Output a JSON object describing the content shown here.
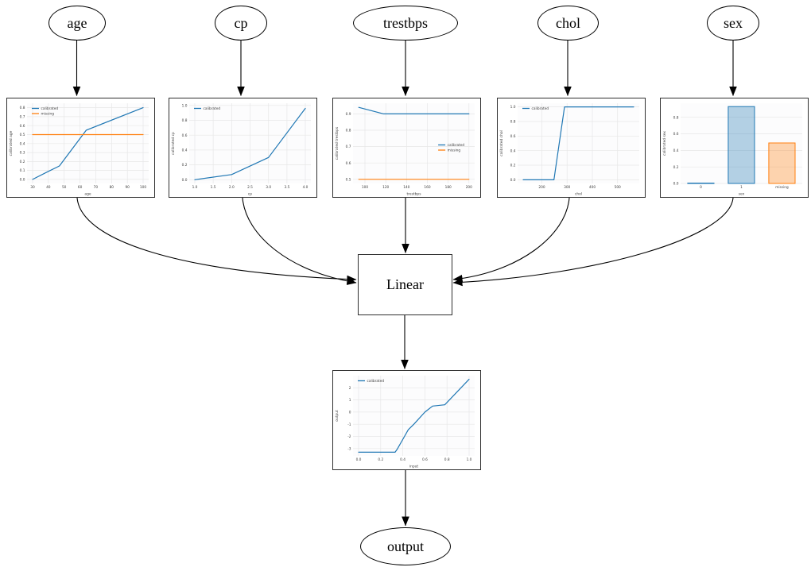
{
  "nodes": {
    "inputs": [
      "age",
      "cp",
      "trestbps",
      "chol",
      "sex"
    ],
    "linear_label": "Linear",
    "output_label": "output"
  },
  "colors": {
    "calibrated": "#1f77b4",
    "missing": "#ff7f0e",
    "edge": "#000000",
    "plot_border": "#333333",
    "grid": "#e7e7e7",
    "tick_text": "#3d3d3d"
  },
  "chart_data": [
    {
      "name": "age-calibrator",
      "type": "line",
      "title": "",
      "xlabel": "age",
      "ylabel": "calibrated age",
      "xlim": [
        26.5,
        103.5
      ],
      "ylim": [
        -0.045,
        0.85
      ],
      "xticks": {
        "values": [
          30,
          40,
          50,
          60,
          70,
          80,
          90,
          100
        ],
        "labels": [
          "30",
          "40",
          "50",
          "60",
          "70",
          "80",
          "90",
          "100"
        ]
      },
      "yticks": {
        "values": [
          0.0,
          0.1,
          0.2,
          0.3,
          0.4,
          0.5,
          0.6,
          0.7,
          0.8
        ],
        "labels": [
          "0.0",
          "0.1",
          "0.2",
          "0.3",
          "0.4",
          "0.5",
          "0.6",
          "0.7",
          "0.8"
        ]
      },
      "grid": true,
      "legend": {
        "position": "upper-left",
        "entries": [
          "calibrated",
          "missing"
        ]
      },
      "series": [
        {
          "name": "calibrated",
          "color": "#1f77b4",
          "points": [
            [
              30,
              0.0
            ],
            [
              40,
              0.09
            ],
            [
              47,
              0.15
            ],
            [
              64,
              0.55
            ],
            [
              100,
              0.8
            ]
          ]
        },
        {
          "name": "missing",
          "color": "#ff7f0e",
          "points": [
            [
              30,
              0.5
            ],
            [
              100,
              0.5
            ]
          ]
        }
      ]
    },
    {
      "name": "cp-calibrator",
      "type": "line",
      "title": "",
      "xlabel": "cp",
      "ylabel": "calibrated cp",
      "xlim": [
        0.85,
        4.15
      ],
      "ylim": [
        -0.05,
        1.03
      ],
      "xticks": {
        "values": [
          1.0,
          1.5,
          2.0,
          2.5,
          3.0,
          3.5,
          4.0
        ],
        "labels": [
          "1.0",
          "1.5",
          "2.0",
          "2.5",
          "3.0",
          "3.5",
          "4.0"
        ]
      },
      "yticks": {
        "values": [
          0.0,
          0.2,
          0.4,
          0.6,
          0.8,
          1.0
        ],
        "labels": [
          "0.0",
          "0.2",
          "0.4",
          "0.6",
          "0.8",
          "1.0"
        ]
      },
      "grid": true,
      "legend": {
        "position": "upper-left",
        "entries": [
          "calibrated"
        ]
      },
      "series": [
        {
          "name": "calibrated",
          "color": "#1f77b4",
          "points": [
            [
              1.0,
              0.0
            ],
            [
              2.0,
              0.07
            ],
            [
              3.0,
              0.3
            ],
            [
              4.0,
              0.96
            ]
          ]
        }
      ]
    },
    {
      "name": "trestbps-calibrator",
      "type": "line",
      "title": "",
      "xlabel": "trestbps",
      "ylabel": "calibrated trestbps",
      "xlim": [
        88.5,
        205.5
      ],
      "ylim": [
        0.475,
        0.965
      ],
      "xticks": {
        "values": [
          100,
          120,
          140,
          160,
          180,
          200
        ],
        "labels": [
          "100",
          "120",
          "140",
          "160",
          "180",
          "200"
        ]
      },
      "yticks": {
        "values": [
          0.5,
          0.6,
          0.7,
          0.8,
          0.9
        ],
        "labels": [
          "0.5",
          "0.6",
          "0.7",
          "0.8",
          "0.9"
        ]
      },
      "grid": true,
      "legend": {
        "position": "center-right",
        "entries": [
          "calibrated",
          "missing"
        ]
      },
      "series": [
        {
          "name": "calibrated",
          "color": "#1f77b4",
          "points": [
            [
              94,
              0.94
            ],
            [
              118,
              0.9
            ],
            [
              200,
              0.9
            ]
          ]
        },
        {
          "name": "missing",
          "color": "#ff7f0e",
          "points": [
            [
              94,
              0.5
            ],
            [
              200,
              0.5
            ]
          ]
        }
      ]
    },
    {
      "name": "chol-calibrator",
      "type": "line",
      "title": "",
      "xlabel": "chol",
      "ylabel": "calibrated chol",
      "xlim": [
        104,
        586
      ],
      "ylim": [
        -0.05,
        1.05
      ],
      "xticks": {
        "values": [
          200,
          300,
          400,
          500
        ],
        "labels": [
          "200",
          "300",
          "400",
          "500"
        ]
      },
      "yticks": {
        "values": [
          0.0,
          0.2,
          0.4,
          0.6,
          0.8,
          1.0
        ],
        "labels": [
          "0.0",
          "0.2",
          "0.4",
          "0.6",
          "0.8",
          "1.0"
        ]
      },
      "grid": true,
      "legend": {
        "position": "upper-left",
        "entries": [
          "calibrated"
        ]
      },
      "series": [
        {
          "name": "calibrated",
          "color": "#1f77b4",
          "points": [
            [
              126,
              0.0
            ],
            [
              248,
              0.0
            ],
            [
              290,
              1.0
            ],
            [
              564,
              1.0
            ]
          ]
        }
      ]
    },
    {
      "name": "sex-calibrator",
      "type": "bar",
      "title": "",
      "xlabel": "sex",
      "ylabel": "calibrated sex",
      "ylim": [
        0,
        0.97
      ],
      "yticks": {
        "values": [
          0.0,
          0.2,
          0.4,
          0.6,
          0.8
        ],
        "labels": [
          "0.0",
          "0.2",
          "0.4",
          "0.6",
          "0.8"
        ]
      },
      "grid": true,
      "legend": null,
      "categories": [
        "0",
        "1",
        "missing"
      ],
      "values": [
        0.005,
        0.93,
        0.49
      ],
      "bar_colors": [
        "#1f77b4",
        "#1f77b4",
        "#ff7f0e"
      ]
    },
    {
      "name": "output-calibrator",
      "type": "line",
      "title": "",
      "xlabel": "input",
      "ylabel": "output",
      "xlim": [
        -0.05,
        1.05
      ],
      "ylim": [
        -3.6,
        3.0
      ],
      "xticks": {
        "values": [
          0.0,
          0.2,
          0.4,
          0.6,
          0.8,
          1.0
        ],
        "labels": [
          "0.0",
          "0.2",
          "0.4",
          "0.6",
          "0.8",
          "1.0"
        ]
      },
      "yticks": {
        "values": [
          -3,
          -2,
          -1,
          0,
          1,
          2
        ],
        "labels": [
          "-3",
          "-2",
          "-1",
          "0",
          "1",
          "2"
        ]
      },
      "grid": true,
      "legend": {
        "position": "upper-left",
        "entries": [
          "calibrated"
        ]
      },
      "series": [
        {
          "name": "calibrated",
          "color": "#1f77b4",
          "points": [
            [
              0.0,
              -3.3
            ],
            [
              0.33,
              -3.3
            ],
            [
              0.35,
              -3.05
            ],
            [
              0.45,
              -1.45
            ],
            [
              0.5,
              -1.0
            ],
            [
              0.6,
              0.0
            ],
            [
              0.67,
              0.5
            ],
            [
              0.78,
              0.6
            ],
            [
              1.0,
              2.7
            ]
          ]
        }
      ]
    }
  ]
}
